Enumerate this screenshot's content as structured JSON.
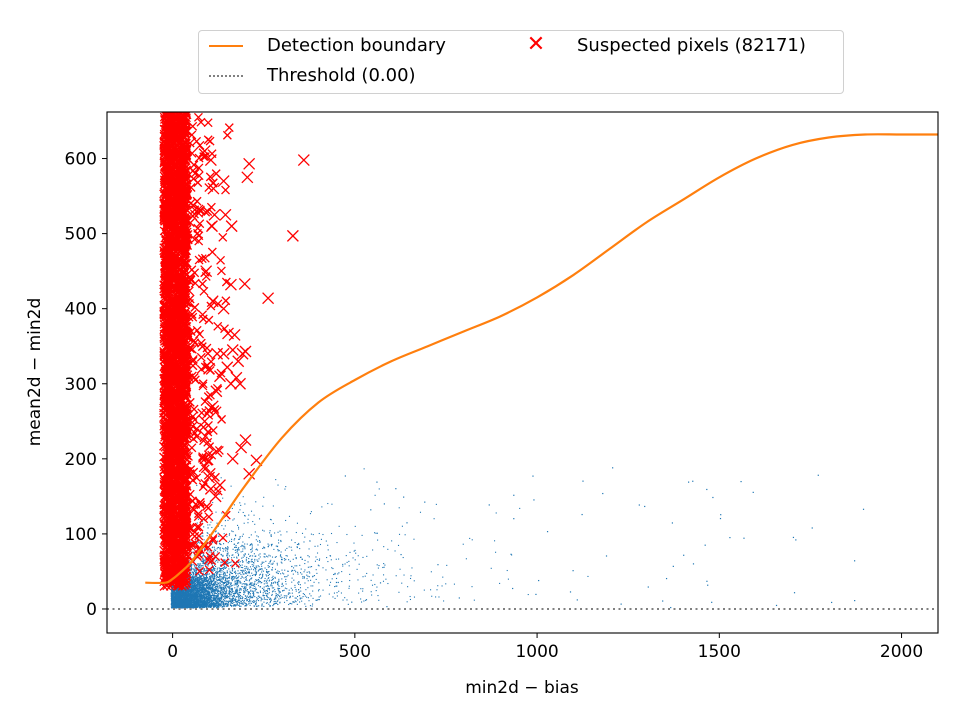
{
  "chart_data": {
    "type": "scatter",
    "title": "",
    "xlabel": "min2d − bias",
    "ylabel": "mean2d − min2d",
    "xlim": [
      -180,
      2100
    ],
    "ylim": [
      -32,
      662
    ],
    "xticks": [
      0,
      500,
      1000,
      1500,
      2000
    ],
    "yticks": [
      0,
      100,
      200,
      300,
      400,
      500,
      600
    ],
    "grid": false,
    "legend_position": "top, outside plot",
    "legend": [
      {
        "label": "Detection boundary",
        "style": "line",
        "color": "#ff7f0e"
      },
      {
        "label": "Suspected pixels (82171)",
        "style": "x-marker",
        "color": "#ff0000"
      },
      {
        "label": "Threshold (0.00)",
        "style": "dotted-line",
        "color": "#808080"
      }
    ],
    "series": [
      {
        "name": "Detection boundary",
        "type": "line",
        "color": "#ff7f0e",
        "x": [
          -75,
          -20,
          0,
          20,
          50,
          100,
          150,
          200,
          300,
          400,
          500,
          600,
          700,
          800,
          900,
          1000,
          1100,
          1200,
          1300,
          1400,
          1500,
          1600,
          1700,
          1800,
          1900,
          2000,
          2100
        ],
        "y": [
          35,
          35,
          40,
          48,
          62,
          95,
          130,
          165,
          228,
          275,
          305,
          330,
          350,
          370,
          390,
          415,
          445,
          480,
          515,
          545,
          575,
          600,
          618,
          628,
          632,
          632,
          632
        ]
      },
      {
        "name": "Threshold (0.00)",
        "type": "hline",
        "color": "#808080",
        "y": 0.0
      },
      {
        "name": "Suspected pixels (82171)",
        "type": "scatter",
        "marker": "x",
        "color": "#ff0000",
        "x": [
          88,
          105,
          112,
          140,
          108,
          115,
          162,
          145,
          210,
          205,
          160,
          330,
          360,
          262,
          198,
          192,
          170,
          140,
          152,
          165,
          180,
          160,
          120,
          100,
          130,
          150,
          175,
          185,
          95,
          110,
          90,
          118,
          120,
          88,
          165,
          200,
          188,
          230,
          100,
          105,
          130,
          118,
          102,
          92,
          140,
          200,
          210,
          110,
          88,
          122
        ],
        "y": [
          610,
          598,
          560,
          570,
          510,
          525,
          510,
          525,
          593,
          575,
          432,
          497,
          598,
          414,
          433,
          340,
          365,
          340,
          367,
          345,
          330,
          300,
          290,
          320,
          310,
          322,
          308,
          300,
          260,
          270,
          230,
          262,
          210,
          190,
          200,
          225,
          215,
          198,
          175,
          160,
          165,
          150,
          180,
          450,
          400,
          343,
          180,
          410,
          250,
          340
        ]
      },
      {
        "name": "Suspected pixels band",
        "type": "dense-band",
        "color": "#ff0000",
        "x_range": [
          -25,
          40
        ],
        "y_range": [
          30,
          662
        ]
      },
      {
        "name": "Pixels",
        "type": "scatter-dense",
        "color": "#1f77b4",
        "x_range": [
          -10,
          2000
        ],
        "y_range": [
          0,
          200
        ]
      }
    ]
  }
}
